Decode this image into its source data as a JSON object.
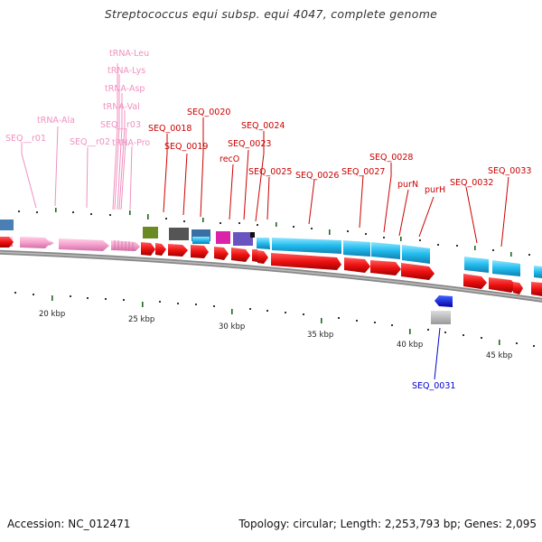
{
  "title": "Streptococcus equi subsp. equi 4047, complete genome",
  "footer": {
    "accession": "Accession: NC_012471",
    "info": "Topology: circular; Length: 2,253,793 bp; Genes: 2,095"
  },
  "kbp_labels": [
    "20 kbp",
    "25 kbp",
    "30 kbp",
    "35 kbp",
    "40 kbp",
    "45 kbp"
  ],
  "labels": {
    "trna_leu": "tRNA-Leu",
    "trna_lys": "tRNA-Lys",
    "trna_asp": "tRNA-Asp",
    "trna_val": "tRNA-Val",
    "trna_ala": "tRNA-Ala",
    "seq_r01": "SEQ__r01",
    "seq_r02": "SEQ__r02",
    "seq_r03": "SEQ__r03",
    "trna_pro": "tRNA-Pro",
    "seq_0018": "SEQ_0018",
    "seq_0019": "SEQ_0019",
    "seq_0020": "SEQ_0020",
    "seq_0023": "SEQ_0023",
    "seq_0024": "SEQ_0024",
    "reco": "recO",
    "seq_0025": "SEQ_0025",
    "seq_0026": "SEQ_0026",
    "seq_0027": "SEQ_0027",
    "seq_0028": "SEQ_0028",
    "purn": "purN",
    "purh": "purH",
    "seq_0032": "SEQ_0032",
    "seq_0033": "SEQ_0033",
    "seq_0031": "SEQ_0031"
  },
  "colors": {
    "trna": "#f090c0",
    "protein_label": "#cc0000",
    "reverse_label": "#0000cc",
    "cds_red": "#ee1111",
    "cds_cyan": "#22bbee",
    "cds_pink": "#f4a0cc",
    "backbone": "#777777"
  }
}
